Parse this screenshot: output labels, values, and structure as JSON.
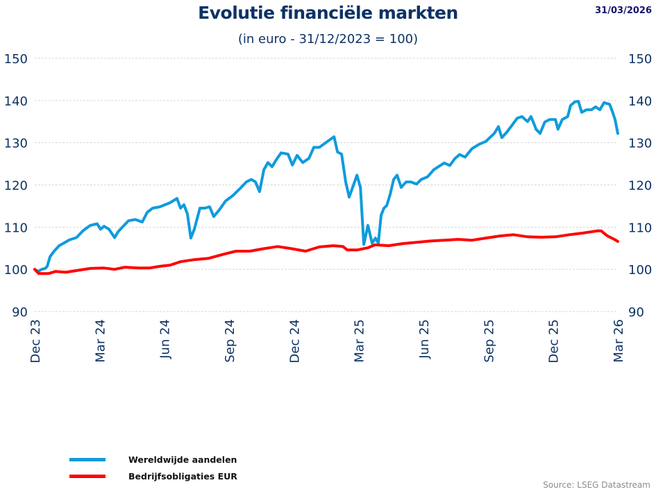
{
  "header": {
    "title": "Evolutie financiële markten",
    "subtitle": "(in euro - 31/12/2023 = 100)",
    "date": "31/03/2026"
  },
  "footer": {
    "source": "Source: LSEG Datastream"
  },
  "chart_data": {
    "type": "line",
    "title": "Evolutie financiële markten",
    "subtitle": "(in euro - 31/12/2023 = 100)",
    "xlabel": "",
    "ylabel": "",
    "x_unit": "months since Dec 2023",
    "xlim": [
      0,
      27
    ],
    "ylim": [
      90,
      150
    ],
    "yticks": [
      90,
      100,
      110,
      120,
      130,
      140,
      150
    ],
    "ytick_labels": [
      "90",
      "100",
      "110",
      "120",
      "130",
      "140",
      "150"
    ],
    "y_axis_sides": [
      "left",
      "right"
    ],
    "xticks": [
      0,
      3,
      6,
      9,
      12,
      15,
      18,
      21,
      24,
      27
    ],
    "xtick_labels": [
      "Dec 23",
      "Mar 24",
      "Jun 24",
      "Sep 24",
      "Dec 24",
      "Mar 25",
      "Jun 25",
      "Sep 25",
      "Dec 25",
      "Mar 26"
    ],
    "grid": true,
    "legend_position": "bottom-left",
    "series": [
      {
        "name": "Wereldwijde aandelen",
        "color": "#0f9bdc",
        "points": [
          [
            0.0,
            100.0
          ],
          [
            0.16,
            99.5
          ],
          [
            0.32,
            100.0
          ],
          [
            0.48,
            100.2
          ],
          [
            0.58,
            100.7
          ],
          [
            0.71,
            103.0
          ],
          [
            0.9,
            104.3
          ],
          [
            1.13,
            105.6
          ],
          [
            1.35,
            106.2
          ],
          [
            1.61,
            107.0
          ],
          [
            1.93,
            107.5
          ],
          [
            2.25,
            109.2
          ],
          [
            2.57,
            110.4
          ],
          [
            2.89,
            110.8
          ],
          [
            3.05,
            109.5
          ],
          [
            3.21,
            110.2
          ],
          [
            3.44,
            109.5
          ],
          [
            3.7,
            107.5
          ],
          [
            3.86,
            108.9
          ],
          [
            4.02,
            109.8
          ],
          [
            4.34,
            111.5
          ],
          [
            4.66,
            111.8
          ],
          [
            4.98,
            111.2
          ],
          [
            5.21,
            113.5
          ],
          [
            5.46,
            114.5
          ],
          [
            5.79,
            114.8
          ],
          [
            6.27,
            115.8
          ],
          [
            6.59,
            116.8
          ],
          [
            6.75,
            114.5
          ],
          [
            6.91,
            115.3
          ],
          [
            7.07,
            113.1
          ],
          [
            7.23,
            107.4
          ],
          [
            7.39,
            109.5
          ],
          [
            7.65,
            114.5
          ],
          [
            7.87,
            114.5
          ],
          [
            8.1,
            114.8
          ],
          [
            8.29,
            112.5
          ],
          [
            8.55,
            114.1
          ],
          [
            8.84,
            116.2
          ],
          [
            9.16,
            117.4
          ],
          [
            9.48,
            119.0
          ],
          [
            9.8,
            120.7
          ],
          [
            10.03,
            121.3
          ],
          [
            10.22,
            120.7
          ],
          [
            10.41,
            118.4
          ],
          [
            10.61,
            123.6
          ],
          [
            10.8,
            125.3
          ],
          [
            10.99,
            124.3
          ],
          [
            11.19,
            126.0
          ],
          [
            11.41,
            127.6
          ],
          [
            11.73,
            127.3
          ],
          [
            11.93,
            124.7
          ],
          [
            12.15,
            127.0
          ],
          [
            12.41,
            125.3
          ],
          [
            12.7,
            126.3
          ],
          [
            12.92,
            128.9
          ],
          [
            13.18,
            128.9
          ],
          [
            13.5,
            130.1
          ],
          [
            13.86,
            131.4
          ],
          [
            14.02,
            127.8
          ],
          [
            14.21,
            127.3
          ],
          [
            14.4,
            120.7
          ],
          [
            14.56,
            117.1
          ],
          [
            14.72,
            119.4
          ],
          [
            14.92,
            122.3
          ],
          [
            15.08,
            119.4
          ],
          [
            15.24,
            105.9
          ],
          [
            15.43,
            110.4
          ],
          [
            15.62,
            106.2
          ],
          [
            15.78,
            107.4
          ],
          [
            15.91,
            106.2
          ],
          [
            16.04,
            112.8
          ],
          [
            16.17,
            114.5
          ],
          [
            16.3,
            115.1
          ],
          [
            16.46,
            117.8
          ],
          [
            16.62,
            121.3
          ],
          [
            16.78,
            122.3
          ],
          [
            16.97,
            119.4
          ],
          [
            17.2,
            120.7
          ],
          [
            17.42,
            120.7
          ],
          [
            17.68,
            120.2
          ],
          [
            17.9,
            121.3
          ],
          [
            18.19,
            121.9
          ],
          [
            18.48,
            123.6
          ],
          [
            18.96,
            125.2
          ],
          [
            19.22,
            124.6
          ],
          [
            19.45,
            126.2
          ],
          [
            19.67,
            127.2
          ],
          [
            19.93,
            126.6
          ],
          [
            20.25,
            128.6
          ],
          [
            20.57,
            129.6
          ],
          [
            20.89,
            130.3
          ],
          [
            21.28,
            132.2
          ],
          [
            21.47,
            133.8
          ],
          [
            21.63,
            131.2
          ],
          [
            21.86,
            132.5
          ],
          [
            22.11,
            134.2
          ],
          [
            22.34,
            135.8
          ],
          [
            22.56,
            136.2
          ],
          [
            22.82,
            135.0
          ],
          [
            22.98,
            136.2
          ],
          [
            23.14,
            134.2
          ],
          [
            23.21,
            133.2
          ],
          [
            23.4,
            132.2
          ],
          [
            23.62,
            134.9
          ],
          [
            23.85,
            135.5
          ],
          [
            24.11,
            135.5
          ],
          [
            24.23,
            133.2
          ],
          [
            24.43,
            135.5
          ],
          [
            24.68,
            136.2
          ],
          [
            24.81,
            138.8
          ],
          [
            25.01,
            139.7
          ],
          [
            25.17,
            139.8
          ],
          [
            25.33,
            137.2
          ],
          [
            25.55,
            137.8
          ],
          [
            25.78,
            137.8
          ],
          [
            25.97,
            138.5
          ],
          [
            26.17,
            137.8
          ],
          [
            26.36,
            139.5
          ],
          [
            26.62,
            139.1
          ],
          [
            26.78,
            136.9
          ],
          [
            26.87,
            135.5
          ],
          [
            27.0,
            132.2
          ]
        ]
      },
      {
        "name": "Bedrijfsobligaties EUR",
        "color": "#ff0000",
        "points": [
          [
            0.0,
            100.0
          ],
          [
            0.19,
            99.0
          ],
          [
            0.64,
            99.0
          ],
          [
            0.96,
            99.5
          ],
          [
            1.45,
            99.3
          ],
          [
            1.93,
            99.7
          ],
          [
            2.57,
            100.2
          ],
          [
            3.21,
            100.3
          ],
          [
            3.7,
            100.0
          ],
          [
            4.18,
            100.5
          ],
          [
            4.82,
            100.3
          ],
          [
            5.3,
            100.3
          ],
          [
            5.79,
            100.7
          ],
          [
            6.27,
            101.0
          ],
          [
            6.75,
            101.8
          ],
          [
            7.39,
            102.3
          ],
          [
            8.04,
            102.6
          ],
          [
            8.68,
            103.5
          ],
          [
            9.32,
            104.3
          ],
          [
            9.96,
            104.3
          ],
          [
            10.61,
            104.9
          ],
          [
            11.25,
            105.4
          ],
          [
            11.89,
            104.9
          ],
          [
            12.54,
            104.3
          ],
          [
            13.18,
            105.3
          ],
          [
            13.82,
            105.6
          ],
          [
            14.27,
            105.4
          ],
          [
            14.47,
            104.6
          ],
          [
            14.95,
            104.6
          ],
          [
            15.43,
            105.1
          ],
          [
            15.75,
            105.8
          ],
          [
            16.39,
            105.6
          ],
          [
            17.04,
            106.1
          ],
          [
            17.68,
            106.4
          ],
          [
            18.32,
            106.7
          ],
          [
            18.96,
            106.9
          ],
          [
            19.61,
            107.1
          ],
          [
            20.25,
            106.9
          ],
          [
            20.89,
            107.4
          ],
          [
            21.54,
            107.9
          ],
          [
            22.18,
            108.2
          ],
          [
            22.82,
            107.7
          ],
          [
            23.46,
            107.6
          ],
          [
            24.11,
            107.7
          ],
          [
            24.75,
            108.2
          ],
          [
            25.39,
            108.6
          ],
          [
            26.04,
            109.1
          ],
          [
            26.23,
            109.1
          ],
          [
            26.52,
            107.9
          ],
          [
            26.84,
            107.1
          ],
          [
            27.0,
            106.6
          ]
        ]
      }
    ]
  }
}
